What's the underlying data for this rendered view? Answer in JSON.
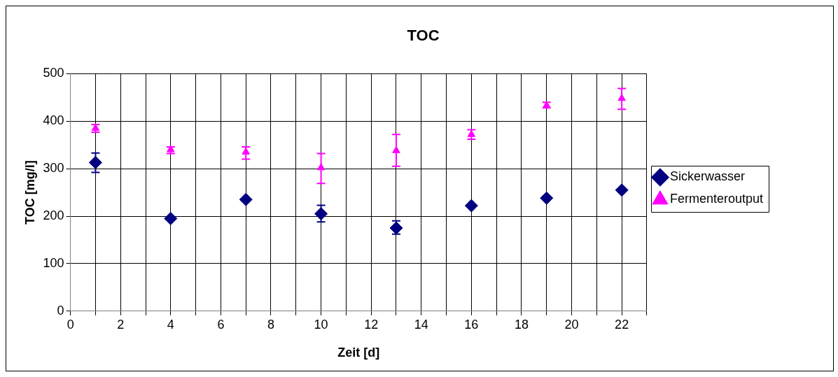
{
  "chart_data": {
    "type": "scatter",
    "title": "TOC",
    "xlabel": "Zeit [d]",
    "ylabel": "TOC [mg/l]",
    "x": [
      1,
      4,
      7,
      10,
      13,
      16,
      19,
      22
    ],
    "series": [
      {
        "name": "Sickerwasser",
        "color": "#000080",
        "marker": "diamond",
        "values": [
          313,
          195,
          235,
          205,
          175,
          222,
          238,
          255
        ],
        "errors": [
          [
            292,
            333
          ],
          null,
          null,
          [
            188,
            223
          ],
          [
            162,
            190
          ],
          null,
          null,
          null
        ]
      },
      {
        "name": "Fermenteroutput",
        "color": "#ff00ff",
        "marker": "triangle",
        "values": [
          385,
          340,
          335,
          302,
          338,
          372,
          433,
          448
        ],
        "errors": [
          [
            377,
            393
          ],
          [
            332,
            346
          ],
          [
            320,
            346
          ],
          [
            269,
            332
          ],
          [
            305,
            372
          ],
          [
            362,
            382
          ],
          [
            428,
            440
          ],
          [
            425,
            469
          ]
        ]
      }
    ],
    "xlim": [
      0,
      23
    ],
    "xticks": [
      0,
      {
        "value": 1,
        "label": null
      },
      2,
      {
        "value": 3,
        "label": null
      },
      4,
      {
        "value": 5,
        "label": null
      },
      6,
      {
        "value": 7,
        "label": null
      },
      8,
      {
        "value": 9,
        "label": null
      },
      10,
      {
        "value": 11,
        "label": null
      },
      12,
      {
        "value": 13,
        "label": null
      },
      14,
      {
        "value": 15,
        "label": null
      },
      16,
      {
        "value": 17,
        "label": null
      },
      18,
      {
        "value": 19,
        "label": null
      },
      20,
      {
        "value": 21,
        "label": null
      },
      22,
      {
        "value": 23,
        "label": null
      }
    ],
    "ylim": [
      0,
      500
    ],
    "yticks": [
      0,
      100,
      200,
      300,
      400,
      500
    ],
    "grid": true,
    "legend": "right"
  }
}
